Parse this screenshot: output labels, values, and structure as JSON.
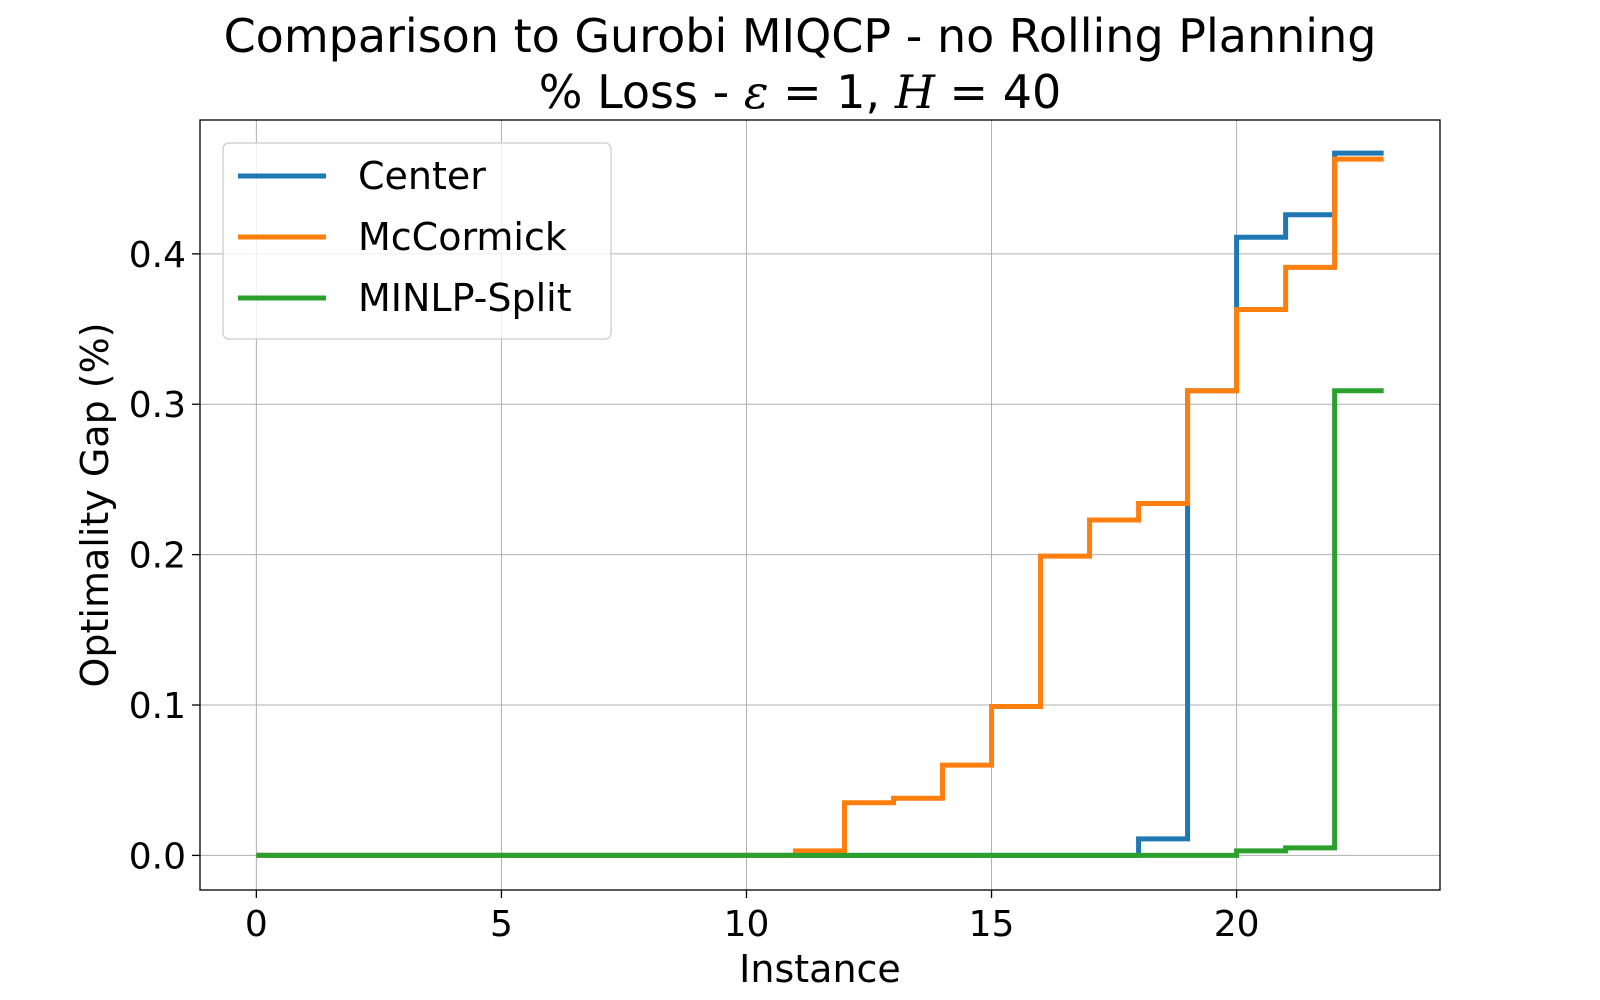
{
  "chart_data": {
    "type": "line",
    "drawstyle": "steps-post",
    "title": "Comparison to Gurobi MIQCP - no Rolling Planning",
    "subtitle": "% Loss - ε = 1, H = 40",
    "xlabel": "Instance",
    "ylabel": "Optimality Gap (%)",
    "xlim": [
      -1.15,
      24.15
    ],
    "ylim": [
      -0.023,
      0.489
    ],
    "xticks": [
      0,
      5,
      10,
      15,
      20
    ],
    "yticks": [
      0.0,
      0.1,
      0.2,
      0.3,
      0.4
    ],
    "xtick_labels": [
      "0",
      "5",
      "10",
      "15",
      "20"
    ],
    "ytick_labels": [
      "0.0",
      "0.1",
      "0.2",
      "0.3",
      "0.4"
    ],
    "grid": true,
    "legend_position": "top-left",
    "x": [
      0,
      1,
      2,
      3,
      4,
      5,
      6,
      7,
      8,
      9,
      10,
      11,
      12,
      13,
      14,
      15,
      16,
      17,
      18,
      19,
      20,
      21,
      22,
      23
    ],
    "series": [
      {
        "name": "Center",
        "color": "#1f77b4",
        "values": [
          0,
          0,
          0,
          0,
          0,
          0,
          0,
          0,
          0,
          0,
          0,
          0,
          0,
          0,
          0,
          0,
          0,
          0,
          0.011,
          0.309,
          0.411,
          0.426,
          0.467,
          0.467
        ]
      },
      {
        "name": "McCormick",
        "color": "#ff7f0e",
        "values": [
          0,
          0,
          0,
          0,
          0,
          0,
          0,
          0,
          0,
          0,
          0,
          0.003,
          0.035,
          0.038,
          0.06,
          0.099,
          0.199,
          0.223,
          0.234,
          0.309,
          0.363,
          0.391,
          0.463,
          0.463
        ]
      },
      {
        "name": "MINLP-Split",
        "color": "#2ca02c",
        "values": [
          0,
          0,
          0,
          0,
          0,
          0,
          0,
          0,
          0,
          0,
          0,
          0,
          0,
          0,
          0,
          0,
          0,
          0,
          0,
          0,
          0.003,
          0.005,
          0.309,
          0.309
        ]
      }
    ]
  }
}
